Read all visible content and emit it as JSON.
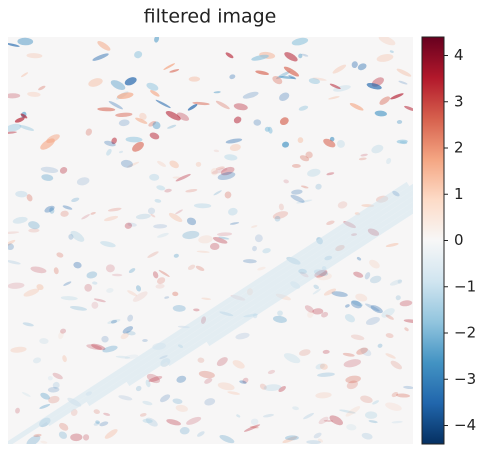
{
  "chart_data": {
    "type": "image",
    "title": "filtered image",
    "colormap": "RdBu_r",
    "clim": [
      -4.4,
      4.4
    ],
    "cticks": [
      {
        "value": -4,
        "label": "−4"
      },
      {
        "value": -3,
        "label": "−3"
      },
      {
        "value": -2,
        "label": "−2"
      },
      {
        "value": -1,
        "label": "−1"
      },
      0,
      1,
      2,
      3,
      4
    ]
  }
}
